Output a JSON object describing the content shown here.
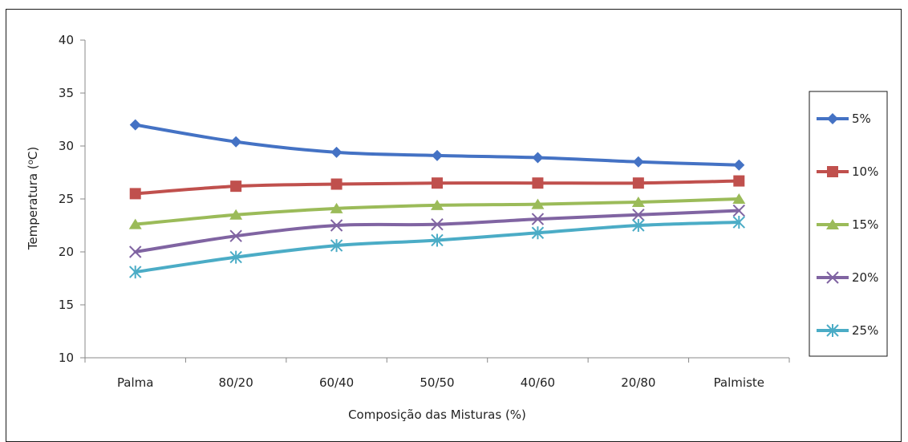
{
  "chart_data": {
    "type": "line",
    "categories": [
      "Palma",
      "80/20",
      "60/40",
      "50/50",
      "40/60",
      "20/80",
      "Palmiste"
    ],
    "xlabel": "Composição das Misturas (%)",
    "ylabel_parts": {
      "pre": "Temperatura (",
      "sup": "o",
      "post": "C)"
    },
    "ylim": [
      10,
      40
    ],
    "yticks": [
      10,
      15,
      20,
      25,
      30,
      35,
      40
    ],
    "grid": false,
    "legend_position": "right",
    "series": [
      {
        "name": "5%",
        "color": "#4472c4",
        "marker": "diamond",
        "values": [
          32.0,
          30.4,
          29.4,
          29.1,
          28.9,
          28.5,
          28.2
        ]
      },
      {
        "name": "10%",
        "color": "#c0504d",
        "marker": "square",
        "values": [
          25.5,
          26.2,
          26.4,
          26.5,
          26.5,
          26.5,
          26.7
        ]
      },
      {
        "name": "15%",
        "color": "#9bbb59",
        "marker": "triangle",
        "values": [
          22.6,
          23.5,
          24.1,
          24.4,
          24.5,
          24.7,
          25.0
        ]
      },
      {
        "name": "20%",
        "color": "#8064a2",
        "marker": "x",
        "values": [
          20.0,
          21.5,
          22.5,
          22.6,
          23.1,
          23.5,
          23.9
        ]
      },
      {
        "name": "25%",
        "color": "#4bacc6",
        "marker": "star",
        "values": [
          18.1,
          19.5,
          20.6,
          21.1,
          21.8,
          22.5,
          22.8
        ]
      }
    ]
  }
}
